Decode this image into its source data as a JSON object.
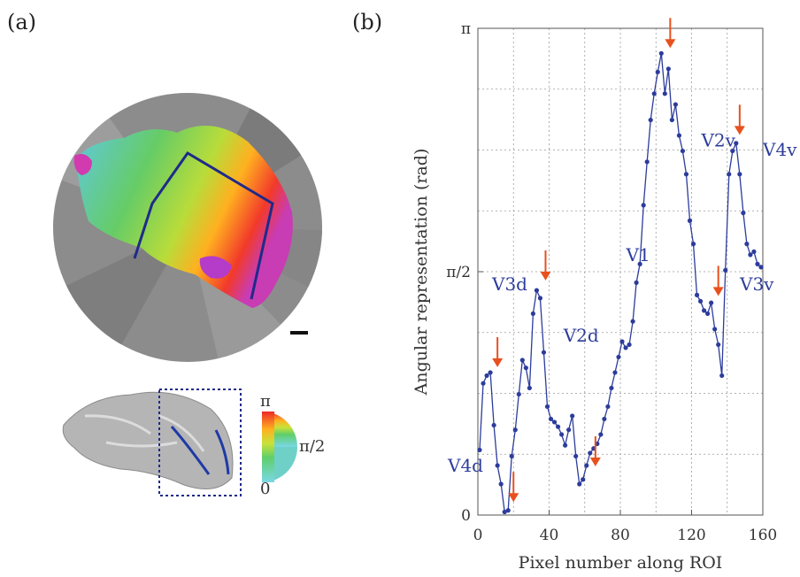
{
  "panel_a": {
    "label": "(a)",
    "colorbar": {
      "top_label": "π",
      "mid_label": "π/2",
      "bottom_label": "0"
    }
  },
  "panel_b": {
    "label": "(b)"
  },
  "chart_data": {
    "type": "line",
    "xlabel": "Pixel number along ROI",
    "ylabel": "Angular representation (rad)",
    "xlim": [
      0,
      160
    ],
    "ylim": [
      0,
      3.14159
    ],
    "x_ticks": [
      0,
      40,
      80,
      120,
      160
    ],
    "x_tick_labels": [
      "0",
      "40",
      "80",
      "120",
      "160"
    ],
    "y_ticks": [
      0,
      1.5708,
      3.14159
    ],
    "y_tick_labels": [
      "0",
      "π/2",
      "π"
    ],
    "grid": true,
    "marker_color": "#2c3c9c",
    "arrow_color": "#e8501e",
    "series": [
      {
        "x": [
          1,
          3,
          5,
          7,
          9,
          11,
          13,
          15,
          17,
          19,
          21,
          23,
          25,
          27,
          29,
          31,
          33,
          35,
          37,
          39,
          41,
          43,
          45,
          47,
          49,
          51,
          53,
          55,
          57,
          59,
          61,
          63,
          65,
          67,
          69,
          71,
          73,
          75,
          77,
          79,
          81,
          83,
          85,
          87,
          89,
          91,
          93,
          95,
          97,
          99,
          101,
          103,
          105,
          107,
          109,
          111,
          113,
          115,
          117,
          119,
          121,
          123,
          125,
          127,
          129,
          131,
          133,
          135,
          137,
          139,
          141,
          143,
          145,
          147,
          149,
          151,
          153,
          155,
          157,
          159
        ],
        "y": [
          0.42,
          0.85,
          0.9,
          0.92,
          0.58,
          0.32,
          0.2,
          0.02,
          0.03,
          0.38,
          0.55,
          0.78,
          1.0,
          0.95,
          0.82,
          1.3,
          1.45,
          1.4,
          1.05,
          0.7,
          0.62,
          0.6,
          0.57,
          0.52,
          0.45,
          0.55,
          0.64,
          0.38,
          0.2,
          0.23,
          0.32,
          0.4,
          0.43,
          0.46,
          0.52,
          0.62,
          0.7,
          0.82,
          0.92,
          1.02,
          1.12,
          1.08,
          1.1,
          1.25,
          1.5,
          1.62,
          2.0,
          2.28,
          2.55,
          2.72,
          2.86,
          2.98,
          2.72,
          2.88,
          2.55,
          2.65,
          2.45,
          2.35,
          2.2,
          1.9,
          1.75,
          1.42,
          1.38,
          1.32,
          1.3,
          1.37,
          1.2,
          1.1,
          0.9,
          1.58,
          2.2,
          2.35,
          2.4,
          2.2,
          1.95,
          1.75,
          1.68,
          1.7,
          1.62,
          1.6
        ]
      }
    ],
    "annotations": [
      {
        "text": "V4d",
        "x": 8,
        "y": 0.28
      },
      {
        "text": "V3d",
        "x": 10,
        "y": 1.45
      },
      {
        "text": "V2d",
        "x": 58,
        "y": 1.12
      },
      {
        "text": "V1",
        "x": 90,
        "y": 1.64
      },
      {
        "text": "V2v",
        "x": 135,
        "y": 2.38
      },
      {
        "text": "V4v",
        "x": 158,
        "y": 2.32
      },
      {
        "text": "V3v",
        "x": 150,
        "y": 1.45
      }
    ],
    "arrows": [
      {
        "x": 11,
        "y": 0.92
      },
      {
        "x": 20,
        "y": 0.05
      },
      {
        "x": 38,
        "y": 1.48
      },
      {
        "x": 66,
        "y": 0.28
      },
      {
        "x": 108,
        "y": 2.98
      },
      {
        "x": 135,
        "y": 1.38
      },
      {
        "x": 147,
        "y": 2.42
      }
    ]
  }
}
